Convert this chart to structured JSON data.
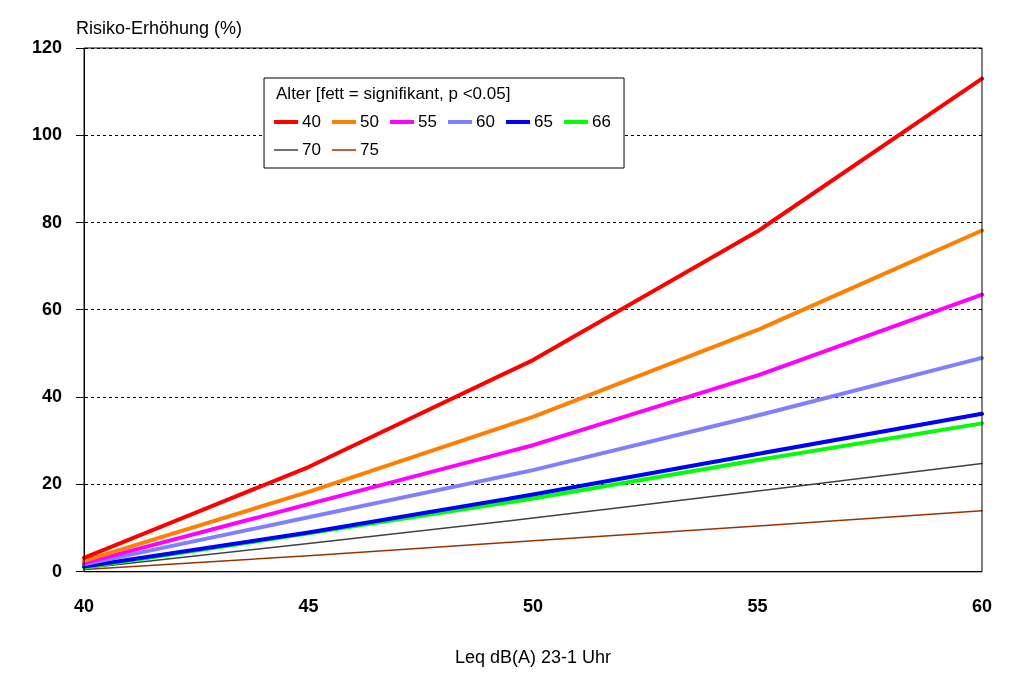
{
  "chart_data": {
    "type": "line",
    "xlabel": "Leq dB(A) 23-1 Uhr",
    "ylabel": "Risiko-Erhöhung (%)",
    "legend_title": "Alter [fett = signifikant, p <0.05]",
    "x": [
      40,
      45,
      50,
      55,
      60
    ],
    "xlim": [
      40,
      60
    ],
    "xticks": [
      40,
      45,
      50,
      55,
      60
    ],
    "ylim": [
      0,
      120
    ],
    "yticks": [
      0,
      20,
      40,
      60,
      80,
      100,
      120
    ],
    "grid": "y",
    "legend": "top left",
    "marker": "none",
    "line_style": "solid",
    "series": [
      {
        "name": "40",
        "color": "#ff0000",
        "values": [
          3.2,
          24,
          48.5,
          78,
          113
        ]
      },
      {
        "name": "50",
        "color": "#ff8000",
        "values": [
          2.5,
          18.3,
          35.5,
          55.4,
          78.2
        ]
      },
      {
        "name": "55",
        "color": "#ff00ff",
        "values": [
          2,
          15.5,
          29,
          45,
          63.5
        ]
      },
      {
        "name": "60",
        "color": "#8080ff",
        "values": [
          1.7,
          12.5,
          23.3,
          35.8,
          49
        ]
      },
      {
        "name": "65",
        "color": "#0000ff",
        "values": [
          1.2,
          9,
          17.7,
          27,
          36.2
        ]
      },
      {
        "name": "66",
        "color": "#00ff00",
        "values": [
          1,
          8.8,
          16.8,
          25.6,
          34
        ]
      },
      {
        "name": "70",
        "color": "#404040",
        "values": [
          0.8,
          6.5,
          12.3,
          18.5,
          24.8
        ]
      },
      {
        "name": "75",
        "color": "#993300",
        "values": [
          0.5,
          3.7,
          7.1,
          10.5,
          14
        ]
      }
    ]
  }
}
